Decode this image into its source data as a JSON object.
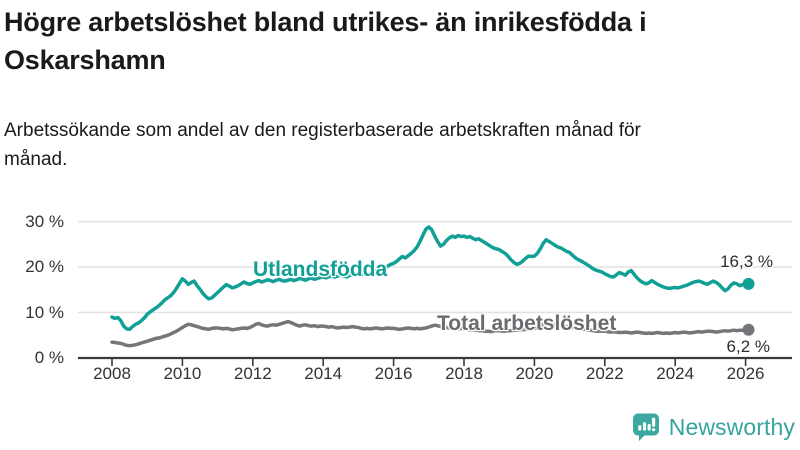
{
  "header": {
    "title": "Högre arbetslöshet bland utrikes- än inrikesfödda i Oskarshamn",
    "subtitle": "Arbetssökande som andel av den registerbaserade arbetskraften månad för månad."
  },
  "chart_data": {
    "type": "line",
    "unit": "%",
    "x_start": 2008.0,
    "points_per_year": 12,
    "x_ticks": [
      2008,
      2010,
      2012,
      2014,
      2016,
      2018,
      2020,
      2022,
      2024,
      2026
    ],
    "x_tick_labels": [
      "2008",
      "2010",
      "2012",
      "2014",
      "2016",
      "2018",
      "2020",
      "2022",
      "2024",
      "2026"
    ],
    "y_ticks": [
      0,
      10,
      20,
      30
    ],
    "y_tick_labels": [
      "0 %",
      "10 %",
      "20 %",
      "30 %"
    ],
    "ylim": [
      0,
      31
    ],
    "grid": true,
    "series": [
      {
        "name": "Utlandsfödda",
        "color": "#11A096",
        "end_label": "16,3 %",
        "end_value": 16.3,
        "values": [
          9.0,
          8.7,
          8.9,
          8.2,
          7.0,
          6.4,
          6.3,
          6.9,
          7.4,
          7.7,
          8.2,
          8.8,
          9.6,
          10.1,
          10.6,
          11.0,
          11.5,
          12.1,
          12.8,
          13.2,
          13.7,
          14.4,
          15.3,
          16.4,
          17.4,
          16.9,
          16.2,
          16.6,
          16.9,
          15.9,
          15.1,
          14.2,
          13.5,
          13.0,
          13.2,
          13.8,
          14.4,
          15.0,
          15.6,
          16.1,
          15.8,
          15.4,
          15.6,
          15.9,
          16.3,
          16.7,
          16.4,
          16.2,
          16.5,
          16.8,
          17.0,
          16.7,
          16.9,
          17.2,
          17.0,
          16.8,
          17.1,
          17.3,
          17.0,
          16.9,
          17.1,
          17.3,
          17.0,
          17.2,
          17.5,
          17.3,
          17.1,
          17.4,
          17.6,
          17.3,
          17.5,
          17.7,
          17.8,
          17.6,
          17.9,
          18.1,
          17.8,
          18.0,
          18.2,
          18.0,
          17.8,
          18.1,
          18.3,
          18.2,
          18.4,
          18.2,
          18.5,
          18.3,
          18.6,
          18.9,
          19.2,
          19.0,
          19.4,
          19.8,
          20.2,
          20.6,
          20.8,
          21.2,
          21.8,
          22.3,
          22.0,
          22.5,
          23.0,
          23.6,
          24.4,
          25.6,
          27.0,
          28.3,
          28.8,
          28.2,
          26.8,
          25.6,
          24.6,
          25.0,
          25.8,
          26.4,
          26.8,
          26.5,
          26.9,
          26.7,
          26.8,
          26.5,
          26.7,
          26.3,
          26.0,
          26.2,
          25.8,
          25.4,
          25.0,
          24.6,
          24.2,
          24.0,
          23.8,
          23.4,
          23.0,
          22.4,
          21.6,
          21.0,
          20.6,
          20.8,
          21.3,
          21.9,
          22.4,
          22.3,
          22.4,
          23.0,
          24.0,
          25.2,
          26.0,
          25.6,
          25.2,
          24.8,
          24.4,
          24.2,
          23.8,
          23.4,
          23.2,
          22.6,
          22.0,
          21.6,
          21.3,
          20.9,
          20.5,
          20.1,
          19.6,
          19.3,
          19.1,
          18.9,
          18.5,
          18.2,
          17.9,
          17.8,
          18.3,
          18.8,
          18.5,
          18.2,
          18.9,
          19.2,
          18.4,
          17.6,
          17.0,
          16.6,
          16.3,
          16.5,
          17.0,
          16.6,
          16.2,
          15.9,
          15.6,
          15.4,
          15.3,
          15.4,
          15.5,
          15.4,
          15.6,
          15.8,
          16.0,
          16.3,
          16.6,
          16.8,
          16.9,
          16.7,
          16.4,
          16.2,
          16.6,
          16.9,
          16.6,
          16.1,
          15.4,
          14.8,
          15.2,
          16.0,
          16.5,
          16.3,
          15.9,
          16.1,
          16.2,
          16.3
        ]
      },
      {
        "name": "Total arbetslöshet",
        "color": "#76767A",
        "end_label": "6,2 %",
        "end_value": 6.2,
        "values": [
          3.5,
          3.4,
          3.3,
          3.2,
          3.0,
          2.8,
          2.7,
          2.8,
          2.9,
          3.1,
          3.3,
          3.5,
          3.7,
          3.9,
          4.1,
          4.3,
          4.4,
          4.6,
          4.8,
          5.0,
          5.3,
          5.6,
          5.9,
          6.3,
          6.7,
          7.1,
          7.4,
          7.3,
          7.1,
          6.9,
          6.7,
          6.5,
          6.4,
          6.3,
          6.5,
          6.6,
          6.6,
          6.5,
          6.4,
          6.5,
          6.4,
          6.2,
          6.3,
          6.4,
          6.5,
          6.6,
          6.5,
          6.7,
          7.0,
          7.4,
          7.6,
          7.3,
          7.1,
          7.0,
          7.2,
          7.3,
          7.2,
          7.4,
          7.6,
          7.8,
          8.0,
          7.8,
          7.5,
          7.2,
          7.0,
          7.2,
          7.3,
          7.1,
          7.0,
          7.1,
          6.9,
          7.0,
          7.0,
          6.9,
          6.8,
          6.9,
          6.7,
          6.6,
          6.7,
          6.8,
          6.7,
          6.8,
          6.9,
          6.8,
          6.7,
          6.5,
          6.4,
          6.5,
          6.4,
          6.5,
          6.6,
          6.5,
          6.4,
          6.5,
          6.6,
          6.5,
          6.5,
          6.4,
          6.3,
          6.4,
          6.5,
          6.6,
          6.5,
          6.4,
          6.5,
          6.4,
          6.5,
          6.6,
          6.8,
          7.0,
          7.2,
          7.1,
          6.9,
          6.8,
          6.7,
          6.6,
          6.5,
          6.5,
          6.4,
          6.5,
          6.4,
          6.3,
          6.2,
          6.2,
          6.1,
          6.0,
          6.0,
          5.9,
          5.9,
          5.8,
          5.9,
          6.0,
          6.0,
          5.9,
          5.9,
          6.0,
          6.0,
          6.1,
          6.1,
          6.2,
          6.2,
          6.3,
          6.3,
          6.4,
          6.5,
          6.6,
          7.0,
          7.4,
          7.6,
          7.5,
          7.4,
          7.3,
          7.2,
          7.1,
          7.0,
          6.9,
          6.8,
          6.7,
          6.6,
          6.5,
          6.4,
          6.3,
          6.2,
          6.1,
          6.0,
          5.9,
          5.9,
          5.9,
          5.9,
          5.8,
          5.7,
          5.8,
          5.7,
          5.6,
          5.6,
          5.7,
          5.6,
          5.5,
          5.6,
          5.7,
          5.6,
          5.5,
          5.4,
          5.5,
          5.4,
          5.5,
          5.6,
          5.5,
          5.4,
          5.5,
          5.4,
          5.5,
          5.6,
          5.5,
          5.6,
          5.7,
          5.6,
          5.5,
          5.6,
          5.7,
          5.8,
          5.7,
          5.8,
          5.9,
          5.9,
          5.8,
          5.7,
          5.8,
          5.9,
          6.0,
          5.9,
          6.0,
          6.1,
          6.0,
          6.1,
          6.1,
          6.1,
          6.2
        ]
      }
    ]
  },
  "branding": {
    "logo_text": "Newsworthy",
    "logo_color": "#35A49E",
    "logo_icon": "speech-bubble-bar-chart"
  },
  "colors": {
    "accent": "#11A096",
    "secondary": "#76767A",
    "axis": "#3A3A3A",
    "gridline": "#E2E2E2",
    "text": "#1A1A1A"
  }
}
